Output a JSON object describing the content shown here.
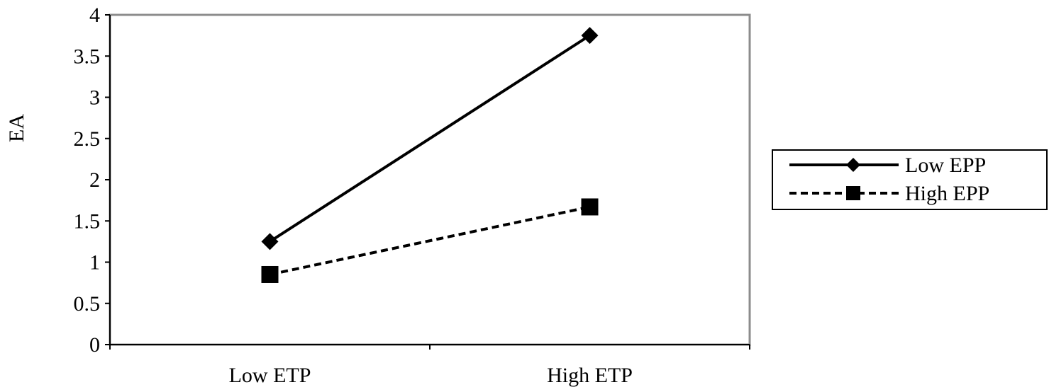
{
  "chart_data": {
    "type": "line",
    "title": "",
    "xlabel": "",
    "ylabel": "EA",
    "categories": [
      "Low ETP",
      "High ETP"
    ],
    "ylim": [
      0,
      4
    ],
    "yticks": [
      0,
      0.5,
      1,
      1.5,
      2,
      2.5,
      3,
      3.5,
      4
    ],
    "ytick_labels": [
      "0",
      "0.5",
      "1",
      "1.5",
      "2",
      "2.5",
      "3",
      "3.5",
      "4"
    ],
    "grid": false,
    "legend": "right",
    "series": [
      {
        "name": "Low EPP",
        "values": [
          1.25,
          3.75
        ],
        "line": "solid",
        "marker": "diamond",
        "color": "#000000"
      },
      {
        "name": "High EPP",
        "values": [
          0.85,
          1.67
        ],
        "line": "dashed",
        "marker": "square",
        "color": "#000000"
      }
    ],
    "plot_border_color": "#8c8c8c"
  }
}
